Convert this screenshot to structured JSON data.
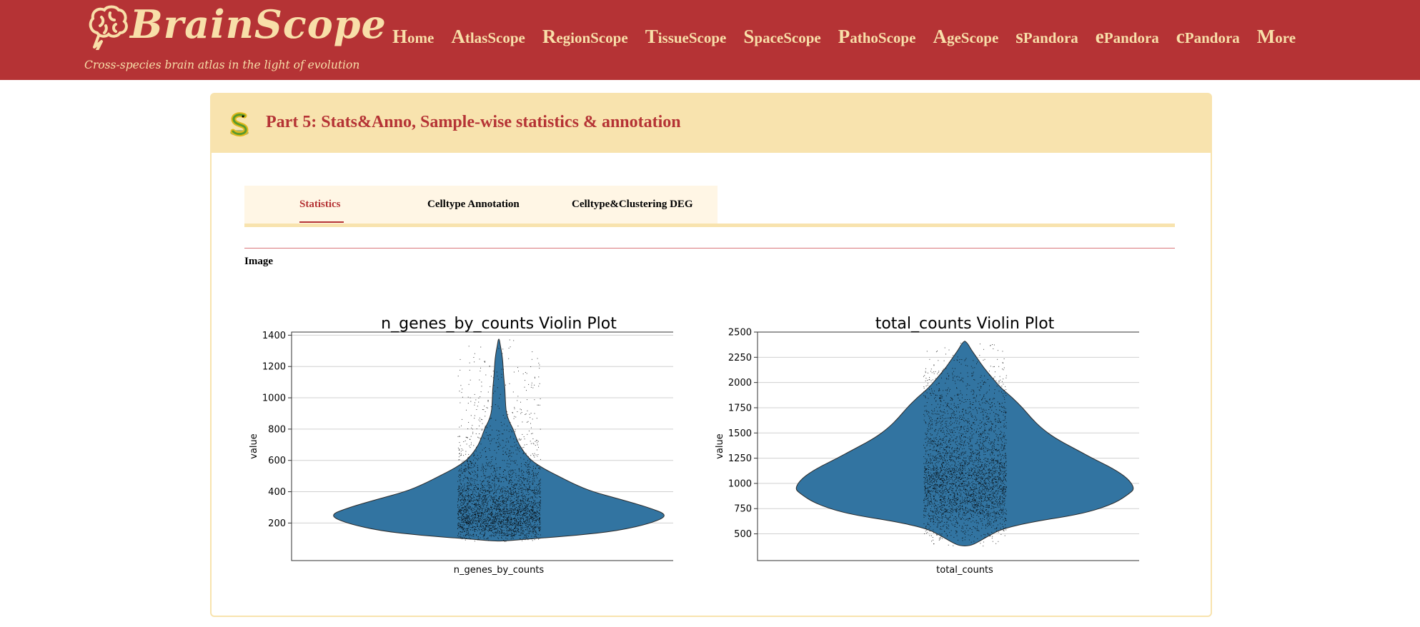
{
  "brand": {
    "name": "BrainScope",
    "tagline": "Cross-species brain atlas in the light of evolution"
  },
  "nav": [
    {
      "first": "H",
      "rest": "ome"
    },
    {
      "first": "A",
      "rest": "tlasScope"
    },
    {
      "first": "R",
      "rest": "egionScope"
    },
    {
      "first": "T",
      "rest": "issueScope"
    },
    {
      "first": "S",
      "rest": "paceScope"
    },
    {
      "first": "P",
      "rest": "athoScope"
    },
    {
      "first": "A",
      "rest": "geScope"
    },
    {
      "first": "s",
      "rest": "Pandora"
    },
    {
      "first": "e",
      "rest": "Pandora"
    },
    {
      "first": "c",
      "rest": "Pandora"
    },
    {
      "first": "M",
      "rest": "ore"
    }
  ],
  "section": {
    "title": "Part 5: Stats&Anno, Sample-wise statistics & annotation"
  },
  "tabs": [
    {
      "label": "Statistics",
      "active": true
    },
    {
      "label": "Celltype Annotation",
      "active": false
    },
    {
      "label": "Celltype&Clustering DEG",
      "active": false
    }
  ],
  "image_label": "Image",
  "colors": {
    "header_red": "#b53335",
    "cream": "#f8e3ae",
    "violin_blue": "#3274a1"
  },
  "chart_data": [
    {
      "type": "violin",
      "title": "n_genes_by_counts Violin Plot",
      "xlabel": "n_genes_by_counts",
      "ylabel": "value",
      "categories": [
        "n_genes_by_counts"
      ],
      "ylim": [
        -40,
        1420
      ],
      "yticks": [
        200,
        400,
        600,
        800,
        1000,
        1200,
        1400
      ],
      "grid": true,
      "density": [
        [
          85,
          0.03
        ],
        [
          100,
          0.2
        ],
        [
          120,
          0.45
        ],
        [
          150,
          0.7
        ],
        [
          200,
          0.9
        ],
        [
          250,
          1.0
        ],
        [
          300,
          0.88
        ],
        [
          350,
          0.72
        ],
        [
          400,
          0.55
        ],
        [
          450,
          0.44
        ],
        [
          500,
          0.35
        ],
        [
          550,
          0.26
        ],
        [
          600,
          0.19
        ],
        [
          650,
          0.15
        ],
        [
          700,
          0.12
        ],
        [
          750,
          0.1
        ],
        [
          800,
          0.085
        ],
        [
          850,
          0.06
        ],
        [
          900,
          0.045
        ],
        [
          950,
          0.04
        ],
        [
          1000,
          0.038
        ],
        [
          1050,
          0.036
        ],
        [
          1100,
          0.032
        ],
        [
          1150,
          0.028
        ],
        [
          1200,
          0.025
        ],
        [
          1250,
          0.022
        ],
        [
          1300,
          0.015
        ],
        [
          1340,
          0.008
        ],
        [
          1375,
          0.003
        ]
      ],
      "points": {
        "count": 3200,
        "min": 100,
        "max": 1380,
        "median": 300
      }
    },
    {
      "type": "violin",
      "title": "total_counts Violin Plot",
      "xlabel": "total_counts",
      "ylabel": "value",
      "categories": [
        "total_counts"
      ],
      "ylim": [
        235,
        2500
      ],
      "yticks": [
        500,
        750,
        1000,
        1250,
        1500,
        1750,
        2000,
        2250,
        2500
      ],
      "grid": true,
      "density": [
        [
          380,
          0.03
        ],
        [
          420,
          0.08
        ],
        [
          480,
          0.14
        ],
        [
          550,
          0.22
        ],
        [
          620,
          0.4
        ],
        [
          700,
          0.7
        ],
        [
          800,
          0.88
        ],
        [
          900,
          0.97
        ],
        [
          950,
          1.0
        ],
        [
          1050,
          0.96
        ],
        [
          1150,
          0.87
        ],
        [
          1250,
          0.75
        ],
        [
          1350,
          0.64
        ],
        [
          1450,
          0.53
        ],
        [
          1550,
          0.45
        ],
        [
          1650,
          0.39
        ],
        [
          1750,
          0.34
        ],
        [
          1850,
          0.28
        ],
        [
          1950,
          0.21
        ],
        [
          2050,
          0.16
        ],
        [
          2150,
          0.11
        ],
        [
          2250,
          0.07
        ],
        [
          2320,
          0.04
        ],
        [
          2380,
          0.02
        ],
        [
          2410,
          0.003
        ]
      ],
      "points": {
        "count": 3600,
        "min": 380,
        "max": 2410,
        "median": 1050
      }
    }
  ]
}
